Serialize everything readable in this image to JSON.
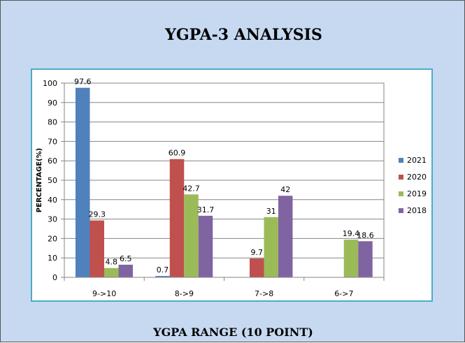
{
  "chart_data": {
    "type": "bar",
    "title": "YGPA-3 ANALYSIS",
    "xlabel": "YGPA RANGE (10 POINT)",
    "ylabel": "PERCENTAGE(%)",
    "categories": [
      "9->10",
      "8->9",
      "7->8",
      "6->7"
    ],
    "ylim": [
      0,
      100
    ],
    "yticks": [
      0,
      10,
      20,
      30,
      40,
      50,
      60,
      70,
      80,
      90,
      100
    ],
    "grid": true,
    "legend_position": "right",
    "series": [
      {
        "name": "2021",
        "color": "#4f81bd",
        "values": [
          97.6,
          0.7,
          null,
          null
        ]
      },
      {
        "name": "2020",
        "color": "#c0504d",
        "values": [
          29.3,
          60.9,
          9.7,
          null
        ]
      },
      {
        "name": "2019",
        "color": "#9bbb59",
        "values": [
          4.8,
          42.7,
          31,
          19.4
        ]
      },
      {
        "name": "2018",
        "color": "#8064a2",
        "values": [
          6.5,
          31.7,
          42,
          18.6
        ]
      }
    ]
  }
}
